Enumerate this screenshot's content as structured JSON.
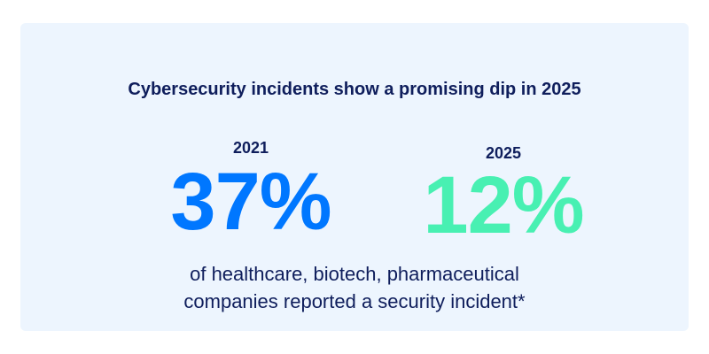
{
  "title": "Cybersecurity incidents show a promising dip in 2025",
  "stats": [
    {
      "year": "2021",
      "value": "37%",
      "color": "#0077ff"
    },
    {
      "year": "2025",
      "value": "12%",
      "color": "#48f0b2"
    }
  ],
  "description": {
    "line1": "of healthcare, biotech, pharmaceutical",
    "line2": "companies reported a security incident*"
  }
}
